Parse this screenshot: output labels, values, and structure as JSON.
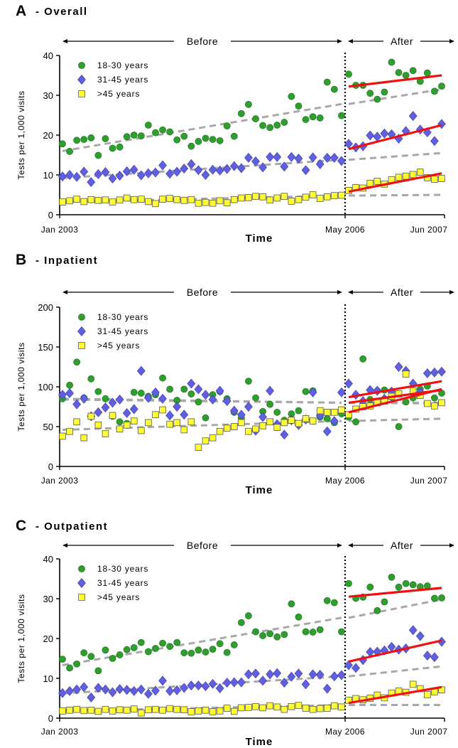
{
  "chart_data": [
    {
      "type": "scatter",
      "panel_letter": "A",
      "title": "- Overall",
      "xlabel": "Time",
      "ylabel": "Tests per 1,000 visits",
      "ylim": [
        0,
        40
      ],
      "yticks": [
        0,
        10,
        20,
        30,
        40
      ],
      "x_tick_labels": [
        "Jan 2003",
        "May 2006",
        "Jun 2007"
      ],
      "period_labels": {
        "before": "Before",
        "after": "After"
      },
      "grid": false,
      "legend_position": "top-left",
      "n_months": 54,
      "intervention_index": 40,
      "series": [
        {
          "name": "18-30 years",
          "marker": "circle",
          "color": "#2f9e2f",
          "values": [
            17.8,
            15.9,
            18.7,
            18.9,
            19.3,
            14.9,
            19.1,
            16.7,
            17.0,
            19.6,
            20.0,
            19.8,
            22.5,
            20.6,
            21.3,
            20.8,
            18.8,
            19.7,
            17.2,
            18.4,
            19.2,
            18.9,
            18.6,
            22.3,
            19.7,
            25.4,
            27.7,
            24.1,
            22.4,
            21.9,
            22.5,
            23.2,
            29.7,
            27.3,
            23.9,
            24.6,
            24.3,
            33.3,
            31.5,
            24.9,
            35.3,
            32.5,
            32.5,
            30.5,
            29.0,
            30.8,
            38.3,
            35.7,
            35.0,
            36.2,
            33.5,
            35.6,
            31.0,
            32.3
          ],
          "trend_before": [
            16,
            27.8
          ],
          "trend_after": [
            32.2,
            35.0
          ],
          "counterfactual": [
            27.8,
            31.5
          ]
        },
        {
          "name": "31-45 years",
          "marker": "diamond",
          "color": "#5f5fdf",
          "values": [
            9.6,
            10.0,
            9.5,
            10.8,
            8.2,
            10.2,
            10.7,
            9.1,
            9.8,
            10.9,
            11.3,
            9.9,
            10.4,
            10.6,
            12.4,
            10.3,
            10.8,
            11.6,
            12.7,
            11.2,
            10.0,
            11.3,
            11.1,
            11.5,
            12.2,
            11.7,
            14.3,
            13.4,
            11.9,
            14.5,
            14.5,
            12.1,
            14.5,
            14.1,
            11.2,
            14.4,
            12.7,
            14.3,
            14.3,
            13.5,
            17.8,
            16.9,
            17.2,
            19.9,
            19.6,
            20.4,
            20.2,
            19.1,
            21.0,
            24.8,
            21.4,
            20.7,
            18.5,
            22.8
          ],
          "trend_before": [
            9.2,
            13.8
          ],
          "trend_after": [
            16.5,
            22.5
          ],
          "counterfactual": [
            13.8,
            15.5
          ]
        },
        {
          "name": ">45 years",
          "marker": "square",
          "color": "#ffff33",
          "values": [
            3.2,
            3.5,
            3.9,
            3.3,
            3.8,
            3.6,
            3.7,
            3.2,
            3.7,
            4.2,
            3.8,
            3.9,
            3.3,
            2.8,
            3.9,
            4.1,
            3.8,
            3.6,
            3.8,
            2.9,
            3.1,
            2.9,
            3.5,
            3.0,
            3.8,
            4.2,
            4.3,
            4.6,
            4.5,
            3.7,
            4.2,
            4.6,
            3.4,
            3.8,
            4.4,
            5.0,
            4.1,
            4.5,
            4.8,
            4.9,
            6.1,
            6.8,
            6.7,
            7.9,
            8.4,
            7.7,
            8.8,
            9.4,
            9.7,
            10.1,
            10.7,
            9.3,
            8.9,
            9.1
          ],
          "trend_before": [
            3.2,
            4.8
          ],
          "trend_after": [
            5.8,
            10.4
          ],
          "counterfactual": [
            4.8,
            5.0
          ]
        }
      ]
    },
    {
      "type": "scatter",
      "panel_letter": "B",
      "title": "- Inpatient",
      "xlabel": "Time",
      "ylabel": "Tests per 1,000 visits",
      "ylim": [
        0,
        200
      ],
      "yticks": [
        0,
        50,
        100,
        150,
        200
      ],
      "x_tick_labels": [
        "Jan 2003",
        "May 2006",
        "Jun 2007"
      ],
      "period_labels": {
        "before": "Before",
        "after": "After"
      },
      "grid": false,
      "legend_position": "top-left",
      "n_months": 54,
      "intervention_index": 40,
      "series": [
        {
          "name": "18-30 years",
          "marker": "circle",
          "color": "#2f9e2f",
          "values": [
            85,
            102,
            131,
            86,
            110,
            94,
            85,
            63,
            56,
            54,
            93,
            92,
            88,
            90,
            111,
            97,
            83,
            97,
            91,
            81,
            61,
            90,
            94,
            85,
            68,
            61,
            107,
            86,
            69,
            78,
            68,
            58,
            66,
            70,
            94,
            95,
            62,
            60,
            55,
            66,
            62,
            56,
            135,
            84,
            95,
            96,
            87,
            50,
            81,
            86,
            97,
            101,
            86,
            92
          ],
          "trend_before": [
            85,
            80
          ],
          "trend_after": [
            87,
            107
          ],
          "counterfactual": [
            80,
            79
          ]
        },
        {
          "name": "31-45 years",
          "marker": "diamond",
          "color": "#5f5fdf",
          "values": [
            90,
            92,
            78,
            85,
            63,
            68,
            74,
            80,
            84,
            67,
            72,
            120,
            86,
            93,
            85,
            64,
            75,
            65,
            104,
            97,
            90,
            84,
            95,
            82,
            70,
            65,
            75,
            45,
            62,
            95,
            53,
            40,
            58,
            52,
            59,
            93,
            64,
            44,
            57,
            93,
            104,
            90,
            82,
            96,
            95,
            85,
            94,
            125,
            120,
            104,
            93,
            117,
            118,
            119
          ],
          "trend_before": [
            84,
            80
          ],
          "trend_after": [
            80,
            96
          ],
          "counterfactual": [
            80,
            80
          ]
        },
        {
          "name": ">45 years",
          "marker": "square",
          "color": "#ffff33",
          "values": [
            38,
            44,
            56,
            36,
            63,
            52,
            41,
            64,
            47,
            52,
            57,
            45,
            55,
            65,
            71,
            53,
            55,
            46,
            56,
            24,
            32,
            36,
            44,
            48,
            50,
            55,
            44,
            47,
            51,
            56,
            49,
            55,
            58,
            54,
            60,
            57,
            70,
            68,
            68,
            71,
            65,
            72,
            75,
            76,
            80,
            82,
            88,
            91,
            116,
            95,
            89,
            79,
            76,
            80
          ],
          "trend_before": [
            46,
            57
          ],
          "trend_after": [
            68,
            97
          ],
          "counterfactual": [
            57,
            60
          ]
        }
      ]
    },
    {
      "type": "scatter",
      "panel_letter": "C",
      "title": "- Outpatient",
      "xlabel": "Time",
      "ylabel": "Tests per 1,000 visits",
      "ylim": [
        0,
        40
      ],
      "yticks": [
        0,
        10,
        20,
        30,
        40
      ],
      "x_tick_labels": [
        "Jan 2003",
        "May 2006",
        "Jun 2007"
      ],
      "period_labels": {
        "before": "Before",
        "after": "After"
      },
      "grid": false,
      "legend_position": "top-left",
      "n_months": 54,
      "intervention_index": 40,
      "series": [
        {
          "name": "18-30 years",
          "marker": "circle",
          "color": "#2f9e2f",
          "values": [
            14.8,
            12.6,
            13.6,
            16.4,
            15.5,
            11.9,
            17.1,
            15.0,
            15.9,
            17.2,
            17.7,
            19.0,
            16.7,
            17.5,
            18.8,
            18.0,
            19.0,
            16.4,
            16.3,
            17.1,
            16.6,
            17.3,
            18.7,
            16.5,
            18.4,
            24.0,
            25.7,
            21.7,
            20.7,
            21.2,
            20.4,
            21.0,
            28.7,
            25.4,
            21.7,
            21.6,
            22.2,
            29.5,
            29.0,
            21.7,
            33.8,
            30.1,
            30.4,
            32.9,
            27.0,
            29.2,
            35.4,
            32.9,
            33.8,
            33.5,
            33.0,
            33.2,
            30.1,
            30.2
          ],
          "trend_before": [
            13.3,
            25.2
          ],
          "trend_after": [
            30.5,
            32.7
          ],
          "counterfactual": [
            25.2,
            29.8
          ]
        },
        {
          "name": "31-45 years",
          "marker": "diamond",
          "color": "#5f5fdf",
          "values": [
            6.3,
            6.8,
            7.2,
            7.8,
            5.2,
            7.6,
            7.2,
            6.5,
            7.3,
            7.1,
            6.8,
            7.2,
            6.1,
            6.9,
            9.4,
            6.8,
            7.0,
            7.6,
            8.2,
            8.2,
            8.0,
            8.6,
            7.5,
            8.9,
            9.0,
            9.0,
            11.0,
            11.2,
            9.4,
            11.0,
            11.3,
            8.9,
            10.4,
            11.2,
            8.5,
            11.0,
            10.9,
            7.4,
            10.5,
            10.8,
            13.3,
            12.6,
            14.6,
            16.6,
            16.7,
            17.0,
            17.9,
            17.2,
            17.5,
            22.1,
            20.6,
            15.7,
            15.3,
            19.2
          ],
          "trend_before": [
            6.2,
            10.5
          ],
          "trend_after": [
            14.2,
            19.5
          ],
          "counterfactual": [
            10.5,
            13.0
          ]
        },
        {
          "name": ">45 years",
          "marker": "square",
          "color": "#ffff33",
          "values": [
            1.8,
            2.0,
            2.2,
            1.9,
            2.0,
            1.7,
            2.2,
            1.8,
            2.1,
            2.0,
            2.3,
            1.3,
            2.1,
            2.2,
            2.0,
            2.4,
            2.2,
            2.1,
            1.6,
            1.8,
            2.0,
            1.6,
            1.8,
            2.5,
            1.7,
            2.6,
            2.7,
            2.9,
            2.6,
            3.1,
            2.8,
            2.2,
            2.9,
            3.2,
            2.5,
            2.2,
            2.4,
            2.5,
            3.1,
            2.8,
            4.5,
            4.9,
            4.6,
            5.0,
            5.8,
            5.1,
            6.3,
            6.8,
            6.5,
            8.5,
            7.4,
            5.9,
            6.6,
            7.1
          ],
          "trend_before": [
            1.8,
            3.3
          ],
          "trend_after": [
            3.8,
            7.8
          ],
          "counterfactual": [
            3.3,
            3.3
          ]
        }
      ]
    }
  ]
}
